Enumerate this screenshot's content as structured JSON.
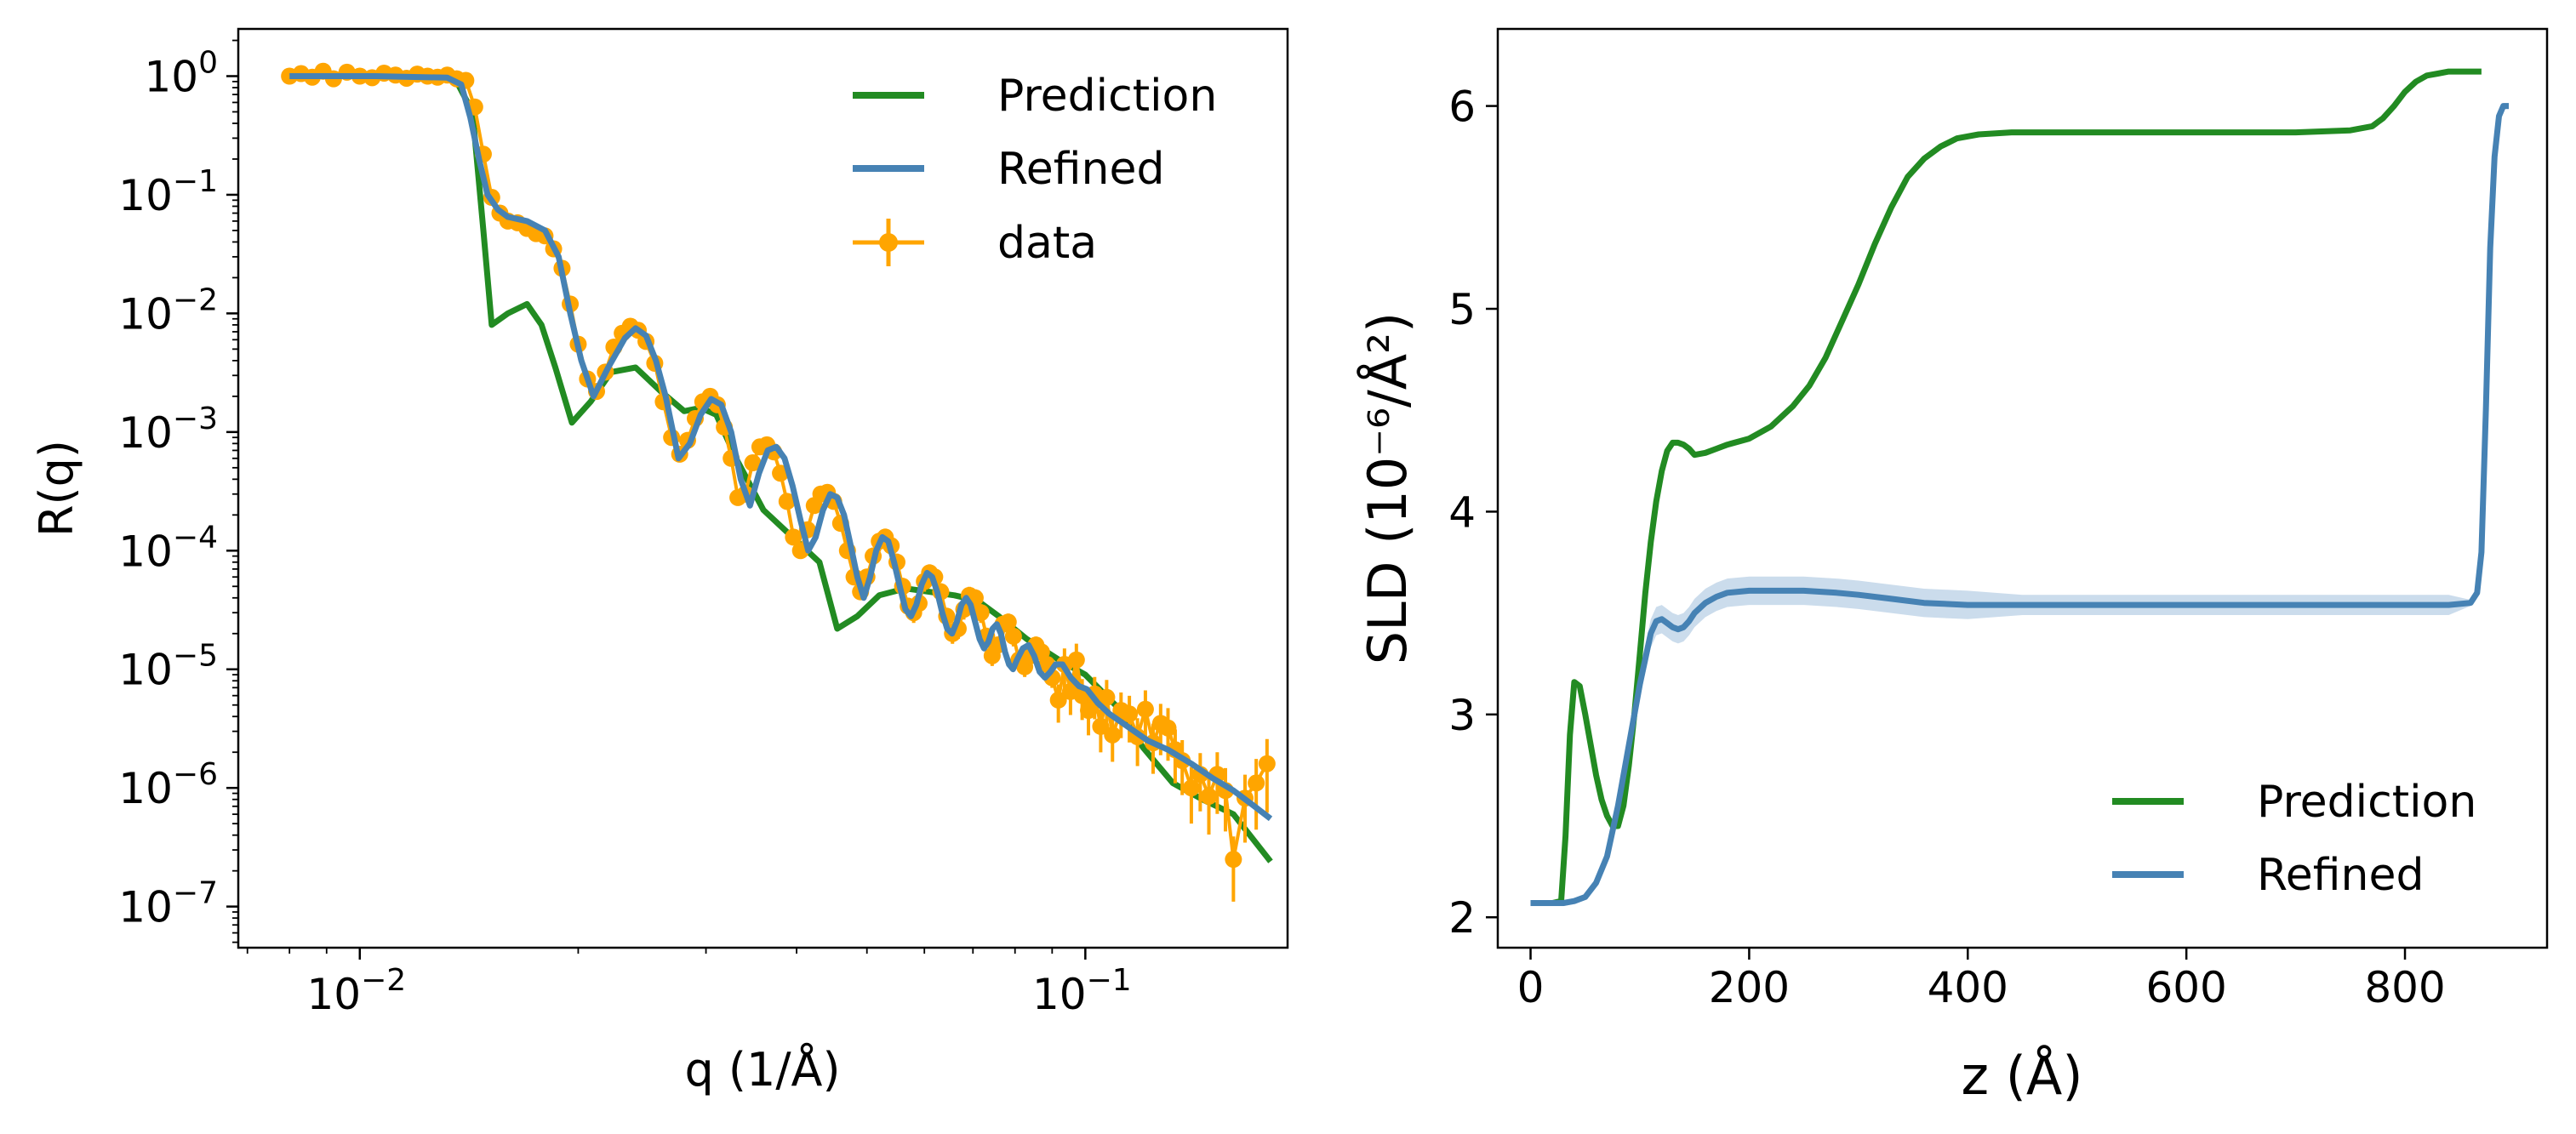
{
  "chart_data": [
    {
      "type": "line",
      "xscale": "log",
      "yscale": "log",
      "xlabel": "q (1/Å)",
      "ylabel": "R(q)",
      "xlim": [
        0.0068,
        0.19
      ],
      "ylim": [
        4.5e-08,
        2.5
      ],
      "xticks": [
        {
          "value": 0.01,
          "base": "10",
          "exp": "−2"
        },
        {
          "value": 0.1,
          "base": "10",
          "exp": "−1"
        }
      ],
      "yticks": [
        {
          "value": 1,
          "base": "10",
          "exp": "0"
        },
        {
          "value": 0.1,
          "base": "10",
          "exp": "−1"
        },
        {
          "value": 0.01,
          "base": "10",
          "exp": "−2"
        },
        {
          "value": 0.001,
          "base": "10",
          "exp": "−3"
        },
        {
          "value": 0.0001,
          "base": "10",
          "exp": "−4"
        },
        {
          "value": 1e-05,
          "base": "10",
          "exp": "−5"
        },
        {
          "value": 1e-06,
          "base": "10",
          "exp": "−6"
        },
        {
          "value": 1e-07,
          "base": "10",
          "exp": "−7"
        }
      ],
      "legend": {
        "position": "top-right",
        "entries": [
          "Prediction",
          "Refined",
          "data"
        ]
      },
      "colors": {
        "Prediction": "#228b22",
        "Refined": "#4682b4",
        "data": "#ffa500"
      },
      "series": [
        {
          "name": "Prediction",
          "x": [
            0.008,
            0.0105,
            0.0135,
            0.0143,
            0.0148,
            0.0152,
            0.016,
            0.017,
            0.0178,
            0.0186,
            0.0196,
            0.0208,
            0.0222,
            0.024,
            0.026,
            0.028,
            0.0295,
            0.031,
            0.033,
            0.036,
            0.0385,
            0.043,
            0.0455,
            0.0485,
            0.052,
            0.0565,
            0.061,
            0.066,
            0.071,
            0.076,
            0.083,
            0.092,
            0.1,
            0.11,
            0.12,
            0.132,
            0.145,
            0.16,
            0.18
          ],
          "y": [
            1.0,
            1.0,
            0.98,
            0.5,
            0.05,
            0.008,
            0.01,
            0.012,
            0.008,
            0.0035,
            0.0012,
            0.0018,
            0.0032,
            0.0035,
            0.0022,
            0.0015,
            0.0016,
            0.0014,
            0.0006,
            0.00022,
            0.00015,
            8e-05,
            2.2e-05,
            2.8e-05,
            4.2e-05,
            4.8e-05,
            4.5e-05,
            4.2e-05,
            3.8e-05,
            2.8e-05,
            1.8e-05,
            1.2e-05,
            9e-06,
            5e-06,
            2.2e-06,
            1.1e-06,
            8e-07,
            6e-07,
            2.4e-07
          ]
        },
        {
          "name": "Refined",
          "x": [
            0.008,
            0.0105,
            0.0132,
            0.0138,
            0.0142,
            0.0146,
            0.015,
            0.0155,
            0.016,
            0.017,
            0.018,
            0.0188,
            0.0195,
            0.0202,
            0.021,
            0.022,
            0.0232,
            0.024,
            0.0248,
            0.0256,
            0.0264,
            0.0275,
            0.0285,
            0.0295,
            0.0305,
            0.0315,
            0.0325,
            0.0335,
            0.0345,
            0.0355,
            0.0365,
            0.0375,
            0.0385,
            0.0395,
            0.0405,
            0.0415,
            0.0425,
            0.0435,
            0.0445,
            0.0455,
            0.0465,
            0.0475,
            0.0485,
            0.0495,
            0.0505,
            0.0515,
            0.0525,
            0.0535,
            0.0545,
            0.0555,
            0.0565,
            0.0575,
            0.0585,
            0.0595,
            0.0605,
            0.0615,
            0.0625,
            0.0635,
            0.0645,
            0.0655,
            0.0665,
            0.0675,
            0.0685,
            0.0695,
            0.0705,
            0.0715,
            0.0725,
            0.0735,
            0.0745,
            0.0755,
            0.0765,
            0.0775,
            0.0785,
            0.0795,
            0.0805,
            0.082,
            0.0835,
            0.085,
            0.0865,
            0.088,
            0.0895,
            0.091,
            0.093,
            0.0955,
            0.098,
            0.1005,
            0.104,
            0.108,
            0.112,
            0.116,
            0.122,
            0.13,
            0.14,
            0.15,
            0.16,
            0.17,
            0.18
          ],
          "y": [
            1.0,
            1.0,
            0.97,
            0.85,
            0.45,
            0.2,
            0.1,
            0.075,
            0.065,
            0.06,
            0.05,
            0.03,
            0.01,
            0.004,
            0.002,
            0.0035,
            0.0062,
            0.0075,
            0.0065,
            0.004,
            0.002,
            0.0006,
            0.0008,
            0.0014,
            0.0019,
            0.0017,
            0.001,
            0.0004,
            0.00024,
            0.00045,
            0.0007,
            0.00075,
            0.0006,
            0.00035,
            0.00018,
            0.0001,
            0.00013,
            0.00022,
            0.0003,
            0.00028,
            0.0002,
            0.00011,
            6e-05,
            4e-05,
            6e-05,
            0.0001,
            0.00013,
            0.00012,
            8e-05,
            5e-05,
            3.2e-05,
            2.8e-05,
            3.5e-05,
            5.2e-05,
            6.5e-05,
            6e-05,
            4.5e-05,
            3e-05,
            2.2e-05,
            2e-05,
            2.5e-05,
            3.5e-05,
            4e-05,
            3.5e-05,
            2.5e-05,
            1.8e-05,
            1.5e-05,
            1.7e-05,
            2.2e-05,
            2.4e-05,
            2e-05,
            1.4e-05,
            1.1e-05,
            1e-05,
            1.2e-05,
            1.5e-05,
            1.6e-05,
            1.3e-05,
            9.5e-06,
            8.5e-06,
            9.5e-06,
            1.1e-05,
            1.1e-05,
            8.5e-06,
            7.2e-06,
            6.8e-06,
            5.2e-06,
            4.2e-06,
            3.6e-06,
            3.1e-06,
            2.5e-06,
            2.1e-06,
            1.6e-06,
            1.2e-06,
            9.5e-07,
            7.2e-07,
            5.5e-07
          ]
        },
        {
          "name": "data",
          "x": [
            0.008,
            0.0083,
            0.0086,
            0.0089,
            0.0092,
            0.0096,
            0.01,
            0.0104,
            0.0108,
            0.0112,
            0.0116,
            0.012,
            0.0124,
            0.0128,
            0.0132,
            0.0136,
            0.014,
            0.0144,
            0.0148,
            0.0152,
            0.0156,
            0.016,
            0.0165,
            0.017,
            0.0175,
            0.018,
            0.0185,
            0.019,
            0.0195,
            0.02,
            0.0206,
            0.0212,
            0.0218,
            0.0224,
            0.023,
            0.0236,
            0.0242,
            0.0248,
            0.0255,
            0.0262,
            0.0269,
            0.0276,
            0.0283,
            0.029,
            0.0297,
            0.0304,
            0.0311,
            0.0318,
            0.0325,
            0.0332,
            0.034,
            0.0348,
            0.0356,
            0.0364,
            0.0372,
            0.038,
            0.0388,
            0.0396,
            0.0405,
            0.0414,
            0.0423,
            0.0432,
            0.0441,
            0.045,
            0.046,
            0.047,
            0.048,
            0.049,
            0.05,
            0.051,
            0.052,
            0.053,
            0.054,
            0.055,
            0.056,
            0.057,
            0.058,
            0.059,
            0.06,
            0.061,
            0.062,
            0.0632,
            0.0644,
            0.0656,
            0.0668,
            0.068,
            0.0692,
            0.0705,
            0.0718,
            0.0731,
            0.0744,
            0.0757,
            0.077,
            0.0783,
            0.0796,
            0.081,
            0.0825,
            0.084,
            0.0855,
            0.087,
            0.0885,
            0.09,
            0.0918,
            0.0936,
            0.0954,
            0.0972,
            0.099,
            0.101,
            0.103,
            0.105,
            0.107,
            0.109,
            0.112,
            0.115,
            0.118,
            0.121,
            0.124,
            0.127,
            0.13,
            0.133,
            0.136,
            0.14,
            0.144,
            0.148,
            0.152,
            0.156,
            0.16,
            0.166,
            0.172,
            0.178
          ],
          "y": [
            1.0,
            1.05,
            0.98,
            1.1,
            0.95,
            1.08,
            1.0,
            0.97,
            1.06,
            1.02,
            0.96,
            1.04,
            1.0,
            0.98,
            1.02,
            0.95,
            0.92,
            0.55,
            0.22,
            0.095,
            0.07,
            0.06,
            0.058,
            0.052,
            0.047,
            0.045,
            0.035,
            0.024,
            0.012,
            0.0055,
            0.0028,
            0.0022,
            0.0032,
            0.0052,
            0.0068,
            0.0078,
            0.0072,
            0.0058,
            0.0038,
            0.0018,
            0.0009,
            0.00065,
            0.00085,
            0.0013,
            0.0018,
            0.002,
            0.0017,
            0.0011,
            0.0006,
            0.00028,
            0.0003,
            0.00055,
            0.00075,
            0.00078,
            0.00068,
            0.00045,
            0.00026,
            0.00013,
            0.0001,
            0.00015,
            0.00024,
            0.0003,
            0.00031,
            0.00026,
            0.00017,
            0.0001,
            6e-05,
            4.5e-05,
            6e-05,
            9e-05,
            0.00012,
            0.00013,
            0.00011,
            8e-05,
            5e-05,
            3.4e-05,
            3e-05,
            3.6e-05,
            5.5e-05,
            6.5e-05,
            6e-05,
            4.5e-05,
            2.8e-05,
            2e-05,
            2.2e-05,
            3.2e-05,
            4.2e-05,
            4e-05,
            3e-05,
            1.9e-05,
            1.3e-05,
            1.6e-05,
            2.4e-05,
            2.5e-05,
            1.9e-05,
            1.2e-05,
            1.05e-05,
            1.3e-05,
            1.6e-05,
            1.4e-05,
            1.1e-05,
            8.5e-06,
            5.5e-06,
            1.1e-05,
            6.5e-06,
            1.2e-05,
            6e-06,
            4.5e-06,
            6.2e-06,
            3.3e-06,
            5.8e-06,
            2.8e-06,
            4.5e-06,
            4.2e-06,
            2.7e-06,
            4.6e-06,
            2.4e-06,
            3.5e-06,
            3.2e-06,
            2.1e-06,
            1.7e-06,
            1e-06,
            1.3e-06,
            8.5e-07,
            1.3e-06,
            9.5e-07,
            2.5e-07,
            8.2e-07,
            1.1e-06,
            1.6e-06
          ]
        }
      ]
    },
    {
      "type": "line",
      "xlabel": "z (Å)",
      "ylabel": "SLD (10⁻⁶/Å²)",
      "xlim": [
        -30,
        930
      ],
      "ylim": [
        1.85,
        6.38
      ],
      "xticks": [
        0,
        200,
        400,
        600,
        800
      ],
      "yticks": [
        2,
        3,
        4,
        5,
        6
      ],
      "legend": {
        "position": "bottom-right",
        "entries": [
          "Prediction",
          "Refined"
        ]
      },
      "colors": {
        "Prediction": "#228b22",
        "Refined": "#4682b4",
        "band": "#a9c4df"
      },
      "series": [
        {
          "name": "Prediction",
          "x": [
            0,
            10,
            20,
            28,
            32,
            36,
            40,
            45,
            50,
            55,
            60,
            65,
            70,
            75,
            80,
            85,
            90,
            95,
            100,
            105,
            110,
            115,
            120,
            125,
            130,
            135,
            140,
            145,
            150,
            160,
            170,
            180,
            200,
            220,
            240,
            255,
            270,
            285,
            300,
            315,
            330,
            345,
            360,
            375,
            390,
            410,
            440,
            480,
            520,
            600,
            700,
            750,
            770,
            780,
            790,
            800,
            810,
            820,
            830,
            840,
            850,
            870
          ],
          "y": [
            2.07,
            2.07,
            2.07,
            2.08,
            2.4,
            2.9,
            3.16,
            3.14,
            3.0,
            2.85,
            2.7,
            2.58,
            2.5,
            2.45,
            2.45,
            2.55,
            2.75,
            3.0,
            3.3,
            3.6,
            3.85,
            4.05,
            4.2,
            4.3,
            4.34,
            4.34,
            4.33,
            4.31,
            4.28,
            4.29,
            4.31,
            4.33,
            4.36,
            4.42,
            4.52,
            4.62,
            4.76,
            4.94,
            5.12,
            5.32,
            5.5,
            5.65,
            5.74,
            5.8,
            5.84,
            5.86,
            5.87,
            5.87,
            5.87,
            5.87,
            5.87,
            5.88,
            5.9,
            5.94,
            6.0,
            6.07,
            6.12,
            6.15,
            6.16,
            6.17,
            6.17,
            6.17
          ]
        },
        {
          "name": "Refined",
          "x": [
            0,
            10,
            20,
            30,
            40,
            50,
            60,
            70,
            80,
            90,
            100,
            110,
            115,
            120,
            125,
            130,
            135,
            140,
            145,
            150,
            160,
            170,
            180,
            200,
            220,
            250,
            280,
            300,
            330,
            360,
            400,
            450,
            500,
            600,
            700,
            800,
            840,
            860,
            866,
            870,
            874,
            878,
            882,
            886,
            890,
            895
          ],
          "y": [
            2.07,
            2.07,
            2.07,
            2.07,
            2.08,
            2.1,
            2.17,
            2.3,
            2.55,
            2.85,
            3.15,
            3.4,
            3.46,
            3.47,
            3.45,
            3.43,
            3.42,
            3.43,
            3.46,
            3.5,
            3.55,
            3.58,
            3.6,
            3.61,
            3.61,
            3.61,
            3.6,
            3.59,
            3.57,
            3.55,
            3.54,
            3.54,
            3.54,
            3.54,
            3.54,
            3.54,
            3.54,
            3.55,
            3.6,
            3.8,
            4.5,
            5.3,
            5.75,
            5.95,
            6.0,
            6.0
          ]
        }
      ]
    }
  ]
}
